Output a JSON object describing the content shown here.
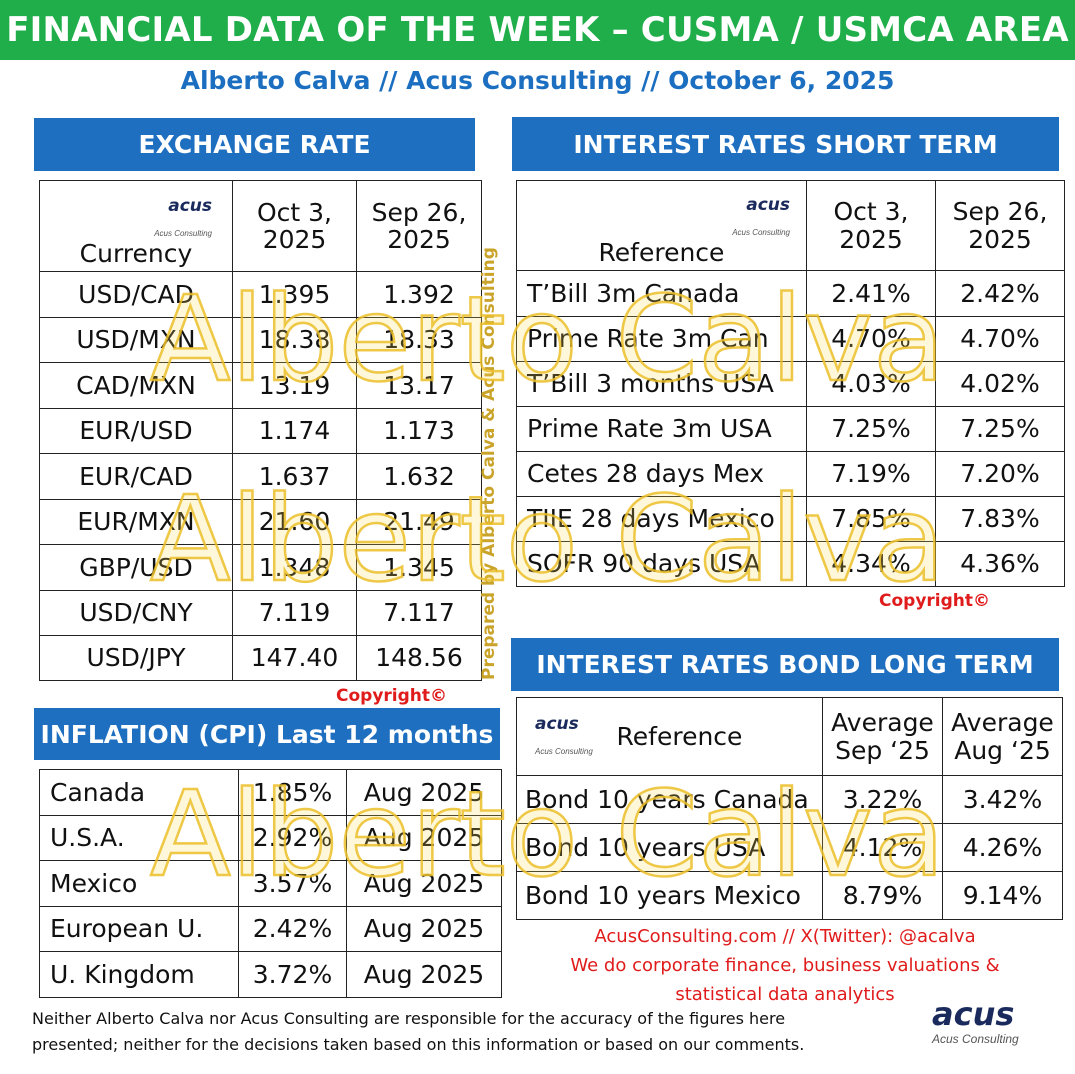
{
  "header": {
    "title": "FINANCIAL DATA OF THE WEEK – CUSMA / USMCA AREA"
  },
  "subtitle": "Alberto Calva // Acus Consulting // October 6, 2025",
  "logo": {
    "wordmark": "acus",
    "tagline": "Acus Consulting"
  },
  "exchange_rate": {
    "heading": "EXCHANGE RATE",
    "col_currency": "Currency",
    "col_date1_line1": "Oct 3,",
    "col_date1_line2": "2025",
    "col_date2_line1": "Sep 26,",
    "col_date2_line2": "2025",
    "rows": [
      {
        "name": "USD/CAD",
        "v1": "1.395",
        "v2": "1.392"
      },
      {
        "name": "USD/MXN",
        "v1": "18.38",
        "v2": "18.33"
      },
      {
        "name": "CAD/MXN",
        "v1": "13.19",
        "v2": "13.17"
      },
      {
        "name": "EUR/USD",
        "v1": "1.174",
        "v2": "1.173"
      },
      {
        "name": "EUR/CAD",
        "v1": "1.637",
        "v2": "1.632"
      },
      {
        "name": "EUR/MXN",
        "v1": "21.60",
        "v2": "21.49"
      },
      {
        "name": "GBP/USD",
        "v1": "1.348",
        "v2": "1.345"
      },
      {
        "name": "USD/CNY",
        "v1": "7.119",
        "v2": "7.117"
      },
      {
        "name": "USD/JPY",
        "v1": "147.40",
        "v2": "148.56"
      }
    ]
  },
  "short_term": {
    "heading": "INTEREST RATES SHORT TERM",
    "col_reference": "Reference",
    "col_date1_line1": "Oct 3,",
    "col_date1_line2": "2025",
    "col_date2_line1": "Sep 26,",
    "col_date2_line2": "2025",
    "rows": [
      {
        "name": "T’Bill 3m Canada",
        "v1": "2.41%",
        "v2": "2.42%"
      },
      {
        "name": "Prime Rate 3m Can",
        "v1": "4.70%",
        "v2": "4.70%"
      },
      {
        "name": "T’Bill 3 months USA",
        "v1": "4.03%",
        "v2": "4.02%"
      },
      {
        "name": "Prime Rate 3m USA",
        "v1": "7.25%",
        "v2": "7.25%"
      },
      {
        "name": "Cetes 28 days Mex",
        "v1": "7.19%",
        "v2": "7.20%"
      },
      {
        "name": "TIIE 28 days Mexico",
        "v1": "7.85%",
        "v2": "7.83%"
      },
      {
        "name": "SOFR 90 days USA",
        "v1": "4.34%",
        "v2": "4.36%"
      }
    ]
  },
  "long_term": {
    "heading": "INTEREST RATES BOND LONG TERM",
    "col_reference": "Reference",
    "col_avg1_line1": "Average",
    "col_avg1_line2": "Sep ‘25",
    "col_avg2_line1": "Average",
    "col_avg2_line2": "Aug ‘25",
    "rows": [
      {
        "name": "Bond 10 years Canada",
        "v1": "3.22%",
        "v2": "3.42%"
      },
      {
        "name": "Bond 10 years USA",
        "v1": "4.12%",
        "v2": "4.26%"
      },
      {
        "name": "Bond 10 years Mexico",
        "v1": "8.79%",
        "v2": "9.14%"
      }
    ]
  },
  "inflation": {
    "heading": "INFLATION (CPI) Last 12 months",
    "rows": [
      {
        "name": "Canada",
        "v1": "1.85%",
        "v2": "Aug 2025"
      },
      {
        "name": "U.S.A.",
        "v1": "2.92%",
        "v2": "Aug 2025"
      },
      {
        "name": "Mexico",
        "v1": "3.57%",
        "v2": "Aug 2025"
      },
      {
        "name": "European U.",
        "v1": "2.42%",
        "v2": "Aug 2025"
      },
      {
        "name": "U. Kingdom",
        "v1": "3.72%",
        "v2": "Aug 2025"
      }
    ]
  },
  "copyright": "Copyright©",
  "vertical_credit": "Prepared by Alberto Calva & Acus Consulting",
  "watermark": "Alberto Calva",
  "contact": {
    "line1": "AcusConsulting.com // X(Twitter): @acalva",
    "line2": "We do corporate finance, business valuations &",
    "line3": "statistical data analytics"
  },
  "disclaimer": {
    "line1": "Neither Alberto Calva nor Acus Consulting are responsible for the accuracy of the figures here",
    "line2": "presented; neither for the decisions taken based on this information or based on our comments."
  },
  "colors": {
    "header_green": "#1fae4a",
    "section_blue": "#1f6fc1",
    "subtitle_blue": "#1c6fc0",
    "copyright_red": "#e01b1b",
    "watermark_gold": "#ebbe28"
  }
}
